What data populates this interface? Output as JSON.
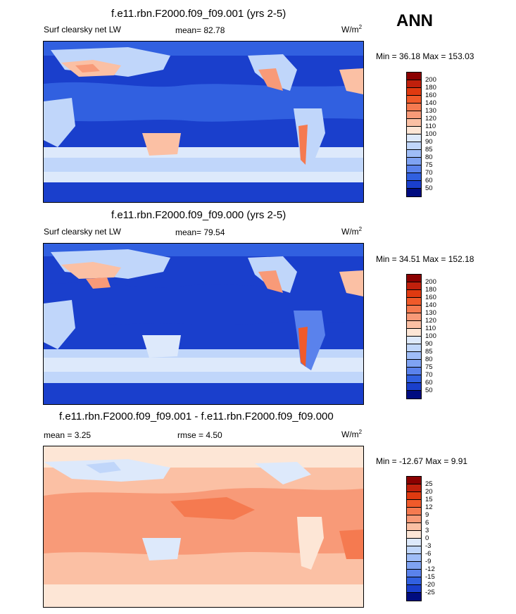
{
  "season": "ANN",
  "units_base": "W/m",
  "units_exp": "2",
  "panels": [
    {
      "title": "f.e11.rbn.F2000.f09_f09.001 (yrs 2-5)",
      "variable": "Surf clearsky net LW",
      "mean_text": "mean=  82.78",
      "minmax_text": "Min =  36.18 Max = 153.03",
      "palette": "abs"
    },
    {
      "title": "f.e11.rbn.F2000.f09_f09.000 (yrs 2-5)",
      "variable": "Surf clearsky net LW",
      "mean_text": "mean=  79.54",
      "minmax_text": "Min =  34.51 Max = 152.18",
      "palette": "abs"
    },
    {
      "title": "f.e11.rbn.F2000.f09_f09.001 - f.e11.rbn.F2000.f09_f09.000",
      "mean_text": "mean =   3.25",
      "rmse_text": "rmse =   4.50",
      "minmax_text": "Min = -12.67 Max =   9.91",
      "palette": "diff"
    }
  ],
  "chart_data": [
    {
      "type": "heatmap",
      "title": "f.e11.rbn.F2000.f09_f09.001 (yrs 2-5)",
      "variable": "Surf clearsky net LW",
      "units": "W/m2",
      "mean": 82.78,
      "min": 36.18,
      "max": 153.03,
      "xlim": [
        0,
        360
      ],
      "ylim": [
        -90,
        90
      ],
      "levels": [
        50,
        60,
        70,
        75,
        80,
        85,
        90,
        100,
        110,
        120,
        130,
        140,
        160,
        180,
        200
      ]
    },
    {
      "type": "heatmap",
      "title": "f.e11.rbn.F2000.f09_f09.000 (yrs 2-5)",
      "variable": "Surf clearsky net LW",
      "units": "W/m2",
      "mean": 79.54,
      "min": 34.51,
      "max": 152.18,
      "xlim": [
        0,
        360
      ],
      "ylim": [
        -90,
        90
      ],
      "levels": [
        50,
        60,
        70,
        75,
        80,
        85,
        90,
        100,
        110,
        120,
        130,
        140,
        160,
        180,
        200
      ]
    },
    {
      "type": "heatmap",
      "title": "f.e11.rbn.F2000.f09_f09.001 - f.e11.rbn.F2000.f09_f09.000",
      "units": "W/m2",
      "mean": 3.25,
      "rmse": 4.5,
      "min": -12.67,
      "max": 9.91,
      "xlim": [
        0,
        360
      ],
      "ylim": [
        -90,
        90
      ],
      "levels": [
        -25,
        -20,
        -15,
        -12,
        -9,
        -6,
        -3,
        0,
        3,
        6,
        9,
        12,
        15,
        20,
        25
      ]
    }
  ],
  "colorbars": {
    "abs": {
      "labels": [
        "200",
        "180",
        "160",
        "140",
        "130",
        "120",
        "110",
        "100",
        "90",
        "85",
        "80",
        "75",
        "70",
        "60",
        "50"
      ],
      "colors": [
        "#8b0000",
        "#c0200c",
        "#e03a10",
        "#f05a2a",
        "#f57a50",
        "#f89a78",
        "#fbc0a4",
        "#fde6d6",
        "#dde9fb",
        "#c0d6fa",
        "#9fbdf7",
        "#7fa3f3",
        "#5a82ec",
        "#3160e0",
        "#1a3fcc",
        "#000c80"
      ]
    },
    "diff": {
      "labels": [
        "25",
        "20",
        "15",
        "12",
        "9",
        "6",
        "3",
        "0",
        "-3",
        "-6",
        "-9",
        "-12",
        "-15",
        "-20",
        "-25"
      ],
      "colors": [
        "#8b0000",
        "#c0200c",
        "#e03a10",
        "#f05a2a",
        "#f57a50",
        "#f89a78",
        "#fbc0a4",
        "#fde6d6",
        "#dde9fb",
        "#c0d6fa",
        "#9fbdf7",
        "#7fa3f3",
        "#5a82ec",
        "#3160e0",
        "#1a3fcc",
        "#000c80"
      ]
    }
  }
}
